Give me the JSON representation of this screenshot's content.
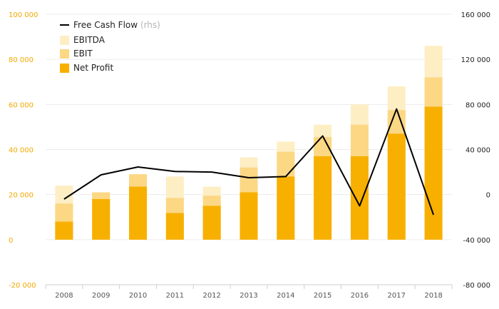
{
  "chart_data": {
    "type": "bar",
    "categories": [
      "2008",
      "2009",
      "2010",
      "2011",
      "2012",
      "2013",
      "2014",
      "2015",
      "2016",
      "2017",
      "2018"
    ],
    "series": [
      {
        "name": "EBITDA",
        "kind": "bar",
        "axis": "left",
        "color": "#fdeec4",
        "values": [
          24000,
          20500,
          29000,
          28000,
          23500,
          36500,
          43500,
          51000,
          60000,
          68000,
          86000
        ]
      },
      {
        "name": "EBIT",
        "kind": "bar",
        "axis": "left",
        "color": "#fcd784",
        "values": [
          16000,
          21000,
          29000,
          18500,
          19500,
          32000,
          39000,
          45500,
          51000,
          57500,
          72000
        ]
      },
      {
        "name": "Net Profit",
        "kind": "bar",
        "axis": "left",
        "color": "#f7b000",
        "values": [
          8000,
          18000,
          23500,
          11800,
          15000,
          21000,
          28000,
          37000,
          37000,
          47000,
          59000
        ]
      },
      {
        "name": "Free Cash Flow",
        "suffix": "(rhs)",
        "kind": "line",
        "axis": "right",
        "color": "#000000",
        "values": [
          -4000,
          17500,
          24500,
          20500,
          20000,
          15000,
          16000,
          52000,
          -10000,
          76000,
          -18000
        ]
      }
    ],
    "y_left": {
      "min": -20000,
      "max": 100000,
      "step": 20000,
      "tick_labels": [
        "-20 000",
        "0",
        "20 000",
        "40 000",
        "60 000",
        "80 000",
        "100 000"
      ]
    },
    "y_right": {
      "min": -80000,
      "max": 160000,
      "step": 40000,
      "tick_labels": [
        "-80 000",
        "-40 000",
        "0",
        "40 000",
        "80 000",
        "120 000",
        "160 000"
      ]
    },
    "grid": true,
    "legend_position": "top-left",
    "colors": {
      "left_axis": "#f2a900",
      "right_axis": "#222222",
      "grid": "#ececec"
    }
  }
}
